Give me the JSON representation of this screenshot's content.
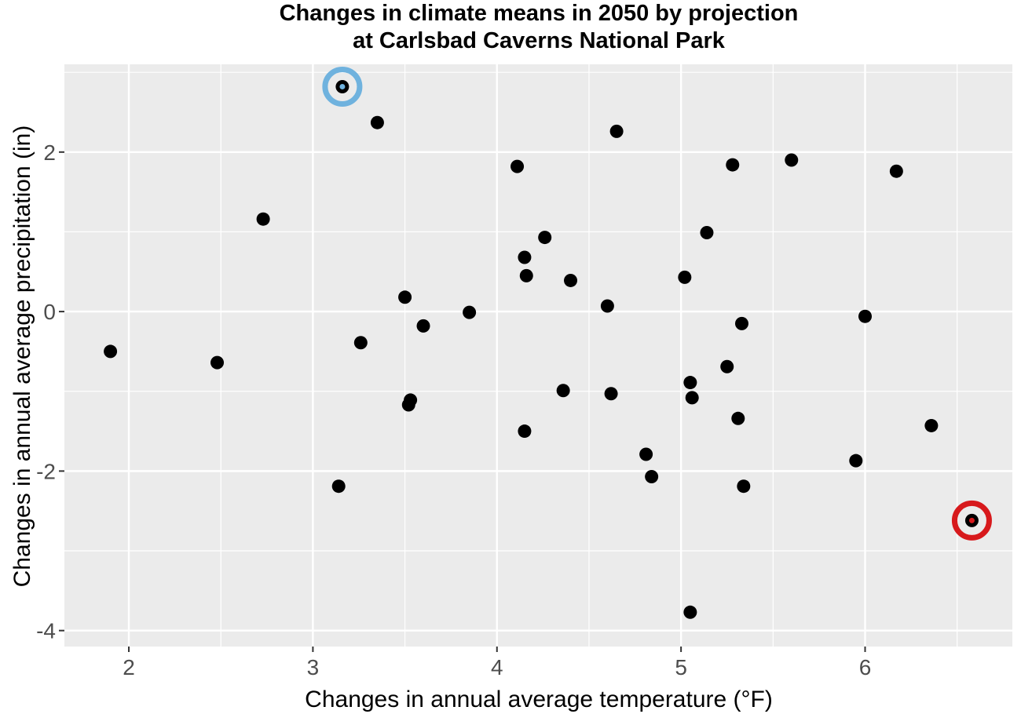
{
  "chart_data": {
    "type": "scatter",
    "title": [
      "Changes in climate means in 2050 by projection",
      "at Carlsbad Caverns National Park"
    ],
    "xlabel": "Changes in annual average temperature (°F)",
    "ylabel": "Changes in annual average precipitation (in)",
    "xlim": [
      1.65,
      6.8
    ],
    "ylim": [
      -4.2,
      3.1
    ],
    "xticks": [
      2,
      3,
      4,
      5,
      6
    ],
    "yticks": [
      -4,
      -2,
      0,
      2
    ],
    "xtick_labels": [
      "2",
      "3",
      "4",
      "5",
      "6"
    ],
    "ytick_labels": [
      "-4",
      "-2",
      "0",
      "2"
    ],
    "grid": true,
    "panel_color": "#ebebeb",
    "point_color": "#000000",
    "points": [
      {
        "x": 1.9,
        "y": -0.5
      },
      {
        "x": 2.48,
        "y": -0.64
      },
      {
        "x": 2.73,
        "y": 1.16
      },
      {
        "x": 3.14,
        "y": -2.19
      },
      {
        "x": 3.16,
        "y": 2.82,
        "highlight": "#6fb2de"
      },
      {
        "x": 3.26,
        "y": -0.39
      },
      {
        "x": 3.35,
        "y": 2.37
      },
      {
        "x": 3.5,
        "y": 0.18
      },
      {
        "x": 3.52,
        "y": -1.17
      },
      {
        "x": 3.53,
        "y": -1.11
      },
      {
        "x": 3.6,
        "y": -0.18
      },
      {
        "x": 3.85,
        "y": -0.01
      },
      {
        "x": 4.11,
        "y": 1.82
      },
      {
        "x": 4.15,
        "y": 0.68
      },
      {
        "x": 4.15,
        "y": -1.5
      },
      {
        "x": 4.16,
        "y": 0.45
      },
      {
        "x": 4.26,
        "y": 0.93
      },
      {
        "x": 4.36,
        "y": -0.99
      },
      {
        "x": 4.4,
        "y": 0.39
      },
      {
        "x": 4.6,
        "y": 0.07
      },
      {
        "x": 4.62,
        "y": -1.03
      },
      {
        "x": 4.65,
        "y": 2.26
      },
      {
        "x": 4.81,
        "y": -1.79
      },
      {
        "x": 4.84,
        "y": -2.07
      },
      {
        "x": 5.02,
        "y": 0.43
      },
      {
        "x": 5.05,
        "y": -0.89
      },
      {
        "x": 5.05,
        "y": -3.77
      },
      {
        "x": 5.06,
        "y": -1.08
      },
      {
        "x": 5.14,
        "y": 0.99
      },
      {
        "x": 5.25,
        "y": -0.69
      },
      {
        "x": 5.28,
        "y": 1.84
      },
      {
        "x": 5.31,
        "y": -1.34
      },
      {
        "x": 5.33,
        "y": -0.15
      },
      {
        "x": 5.34,
        "y": -2.19
      },
      {
        "x": 5.6,
        "y": 1.9
      },
      {
        "x": 5.95,
        "y": -1.87
      },
      {
        "x": 6.0,
        "y": -0.06
      },
      {
        "x": 6.17,
        "y": 1.76
      },
      {
        "x": 6.36,
        "y": -1.43
      },
      {
        "x": 6.58,
        "y": -2.62,
        "highlight": "#d7191c"
      }
    ]
  }
}
